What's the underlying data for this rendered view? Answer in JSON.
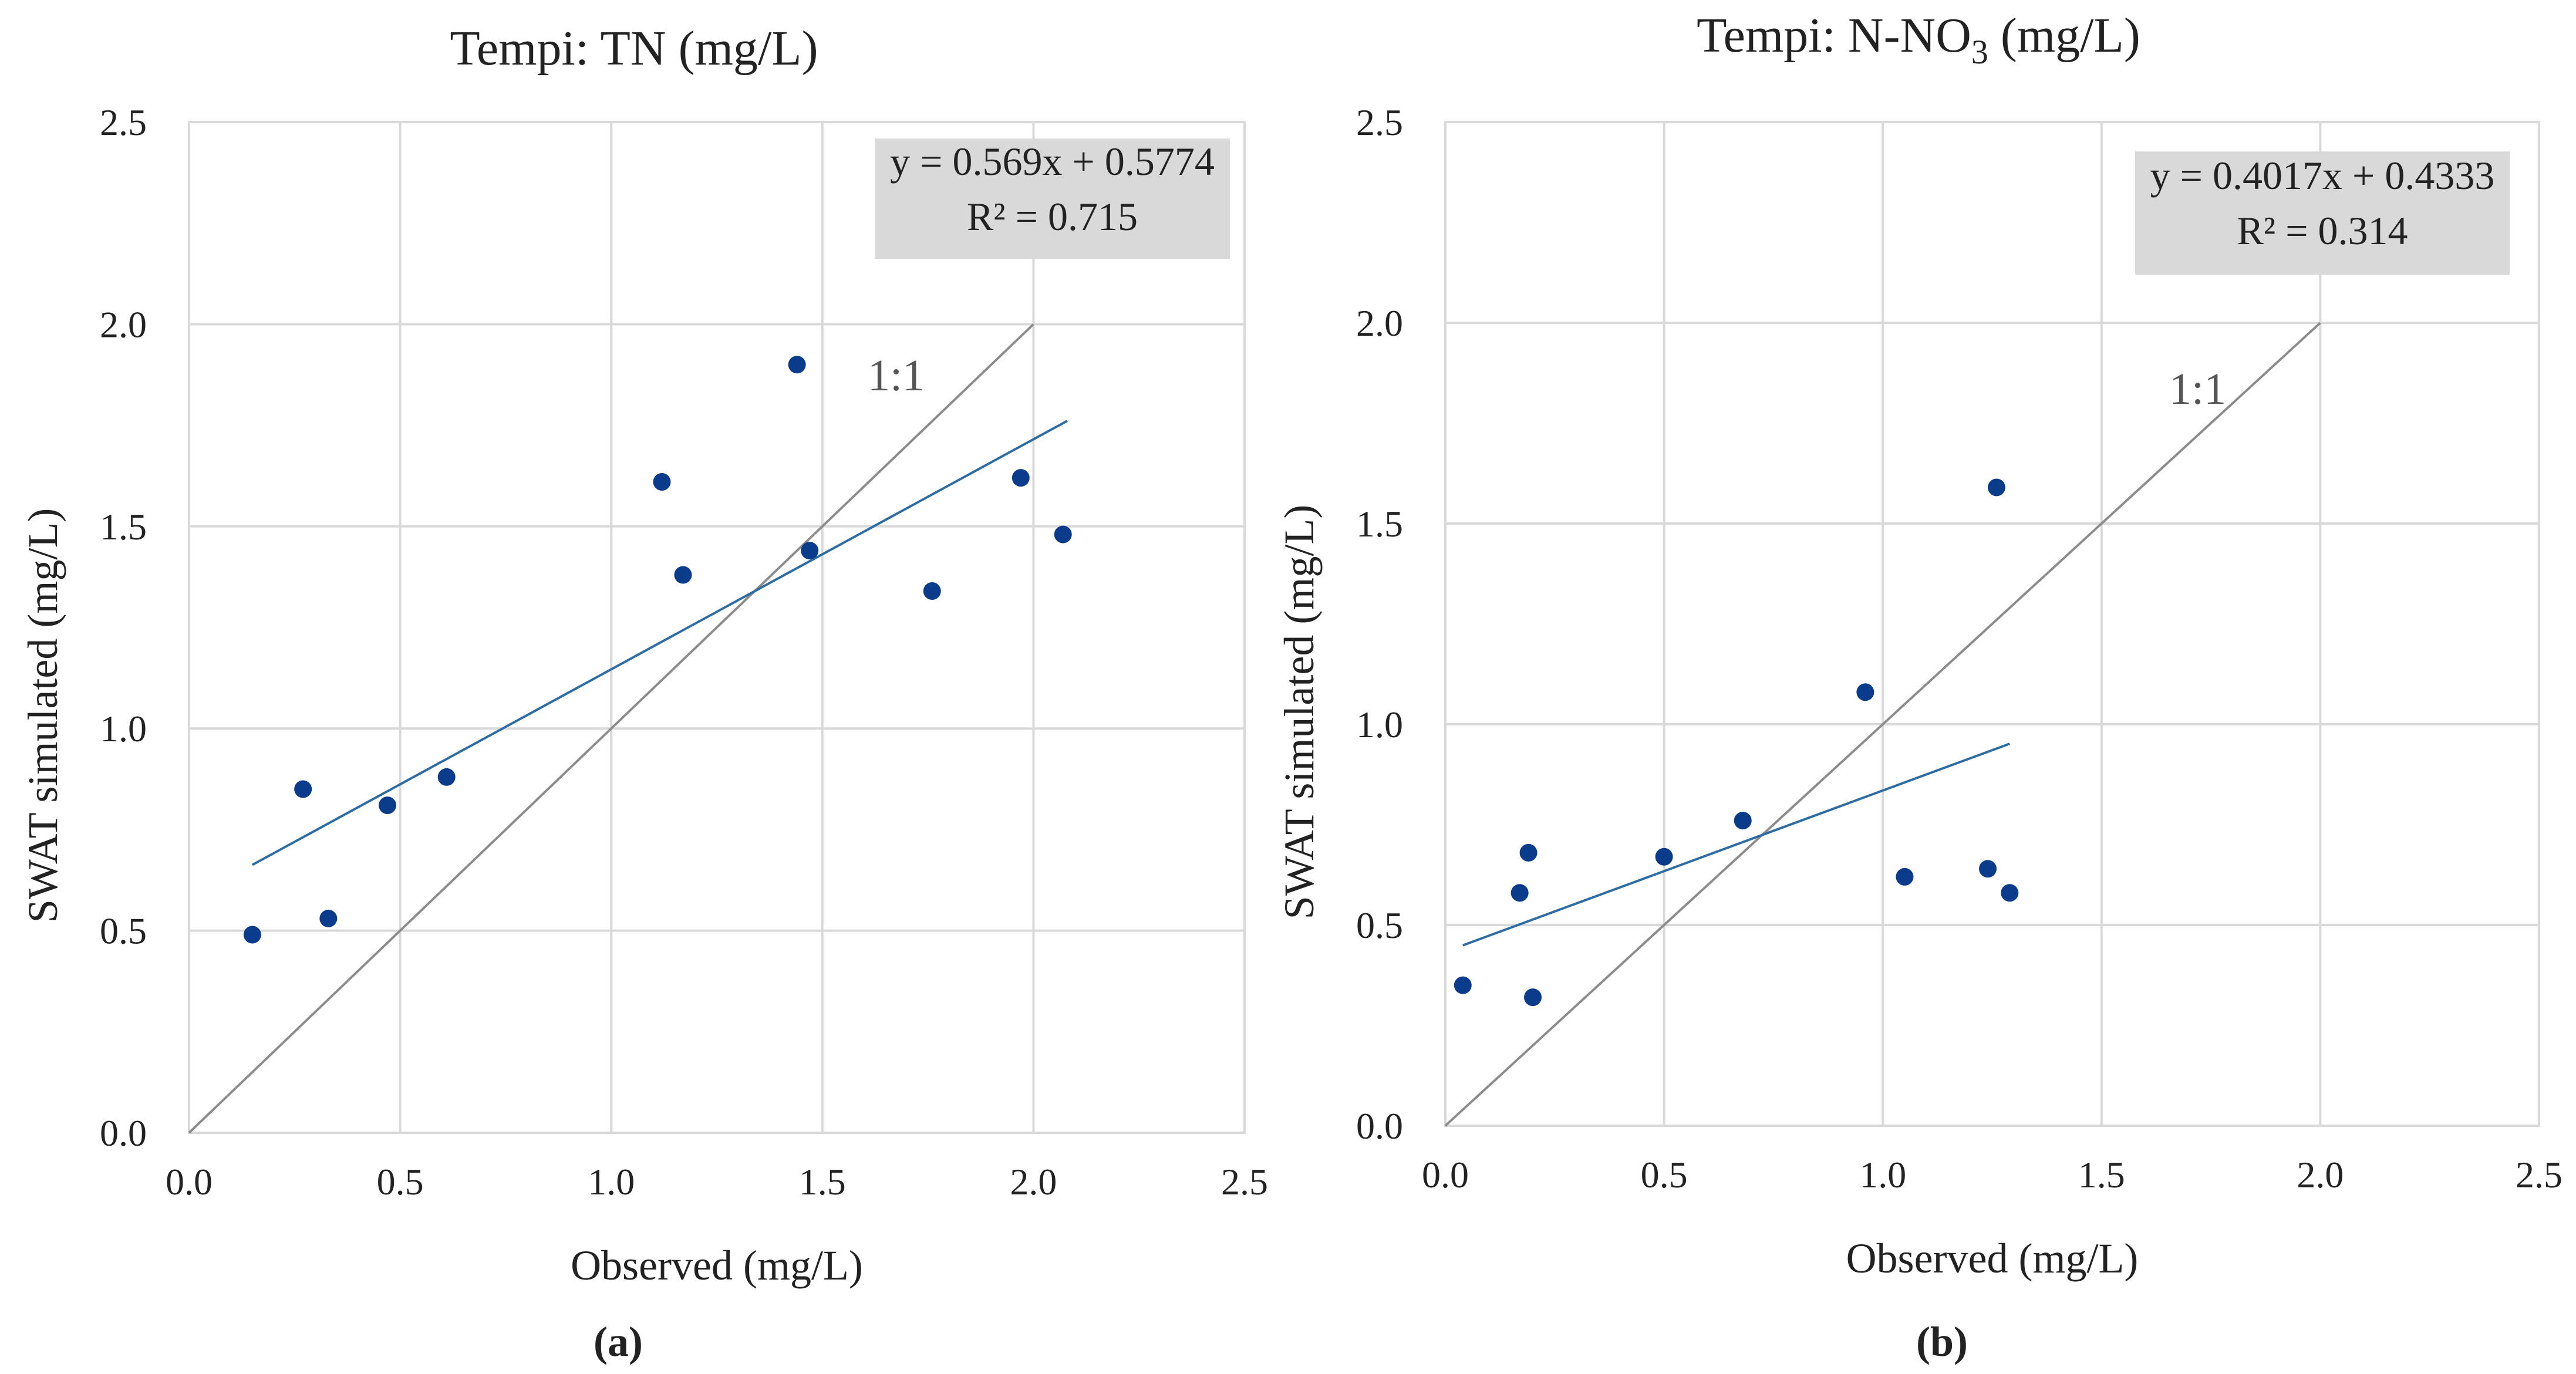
{
  "colors": {
    "points": "#0b3c8c",
    "trendline": "#2e6ca4",
    "identity": "#8c8c8c",
    "grid": "#d9d9d9",
    "eqbox": "#d9d9d9"
  },
  "chart_data": [
    {
      "type": "scatter",
      "title": "Tempi: TN (mg/L)",
      "panel_label": "(a)",
      "xlabel": "Observed (mg/L)",
      "ylabel": "SWAT simulated (mg/L)",
      "xlim": [
        0,
        2.5
      ],
      "ylim": [
        0,
        2.5
      ],
      "xticks": [
        "0.0",
        "0.5",
        "1.0",
        "1.5",
        "2.0",
        "2.5"
      ],
      "yticks": [
        "0.0",
        "0.5",
        "1.0",
        "1.5",
        "2.0",
        "2.5"
      ],
      "grid": true,
      "series": [
        {
          "name": "Tempi TN",
          "points": [
            {
              "x": 0.15,
              "y": 0.49
            },
            {
              "x": 0.27,
              "y": 0.85
            },
            {
              "x": 0.33,
              "y": 0.53
            },
            {
              "x": 0.47,
              "y": 0.81
            },
            {
              "x": 0.61,
              "y": 0.88
            },
            {
              "x": 1.12,
              "y": 1.61
            },
            {
              "x": 1.17,
              "y": 1.38
            },
            {
              "x": 1.44,
              "y": 1.9
            },
            {
              "x": 1.47,
              "y": 1.44
            },
            {
              "x": 1.76,
              "y": 1.34
            },
            {
              "x": 1.97,
              "y": 1.62
            },
            {
              "x": 2.07,
              "y": 1.48
            }
          ]
        }
      ],
      "trendline": {
        "slope": 0.569,
        "intercept": 0.5774,
        "x_range": [
          0.15,
          2.08
        ]
      },
      "identity_line": {
        "label": "1:1",
        "range": [
          0,
          2.0
        ]
      },
      "equation": "y = 0.569x + 0.5774",
      "r_squared": "R² = 0.715"
    },
    {
      "type": "scatter",
      "title": "Tempi: N-NO",
      "title_subscript": "3",
      "title_suffix": " (mg/L)",
      "panel_label": "(b)",
      "xlabel": "Observed (mg/L)",
      "ylabel": "SWAT simulated (mg/L)",
      "xlim": [
        0,
        2.5
      ],
      "ylim": [
        0,
        2.5
      ],
      "xticks": [
        "0.0",
        "0.5",
        "1.0",
        "1.5",
        "2.0",
        "2.5"
      ],
      "yticks": [
        "0.0",
        "0.5",
        "1.0",
        "1.5",
        "2.0",
        "2.5"
      ],
      "grid": true,
      "series": [
        {
          "name": "Tempi N-NO3",
          "points": [
            {
              "x": 0.04,
              "y": 0.35
            },
            {
              "x": 0.17,
              "y": 0.58
            },
            {
              "x": 0.19,
              "y": 0.68
            },
            {
              "x": 0.2,
              "y": 0.32
            },
            {
              "x": 0.5,
              "y": 0.67
            },
            {
              "x": 0.68,
              "y": 0.76
            },
            {
              "x": 0.96,
              "y": 1.08
            },
            {
              "x": 1.05,
              "y": 0.62
            },
            {
              "x": 1.24,
              "y": 0.64
            },
            {
              "x": 1.26,
              "y": 1.59
            },
            {
              "x": 1.29,
              "y": 0.58
            }
          ]
        }
      ],
      "trendline": {
        "slope": 0.4017,
        "intercept": 0.4333,
        "x_range": [
          0.04,
          1.29
        ]
      },
      "identity_line": {
        "label": "1:1",
        "range": [
          0,
          2.0
        ]
      },
      "equation": "y = 0.4017x + 0.4333",
      "r_squared": "R² = 0.314"
    }
  ]
}
